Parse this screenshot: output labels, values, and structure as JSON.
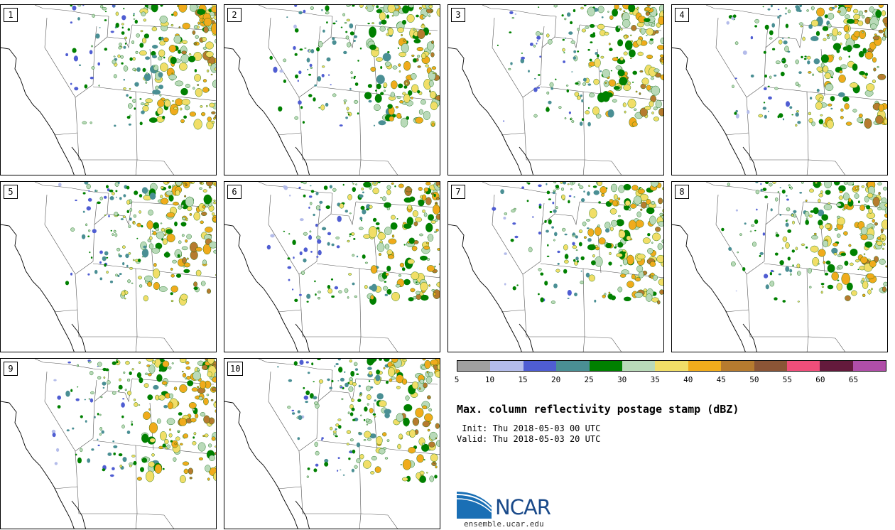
{
  "panels": [
    {
      "label": "1",
      "seed": 11
    },
    {
      "label": "2",
      "seed": 23
    },
    {
      "label": "3",
      "seed": 37
    },
    {
      "label": "4",
      "seed": 41
    },
    {
      "label": "5",
      "seed": 53
    },
    {
      "label": "6",
      "seed": 67
    },
    {
      "label": "7",
      "seed": 71
    },
    {
      "label": "8",
      "seed": 83
    },
    {
      "label": "9",
      "seed": 97
    },
    {
      "label": "10",
      "seed": 101
    }
  ],
  "colorbar": {
    "colors": [
      "#a0a0a0",
      "#b4bcea",
      "#4f5dd2",
      "#4a8f94",
      "#008000",
      "#b9dab9",
      "#f1de67",
      "#f0ab1c",
      "#b67b2f",
      "#8b5536",
      "#ef4e7a",
      "#641a3c",
      "#b04ea8"
    ],
    "ticks": [
      "5",
      "10",
      "15",
      "20",
      "25",
      "30",
      "35",
      "40",
      "45",
      "50",
      "55",
      "60",
      "65"
    ]
  },
  "title": "Max. column reflectivity postage stamp (dBZ)",
  "init_text": " Init: Thu 2018-05-03 00 UTC",
  "valid_text": "Valid: Thu 2018-05-03 20 UTC",
  "logo": {
    "name": "NCAR",
    "site": "ensemble.ucar.edu"
  }
}
